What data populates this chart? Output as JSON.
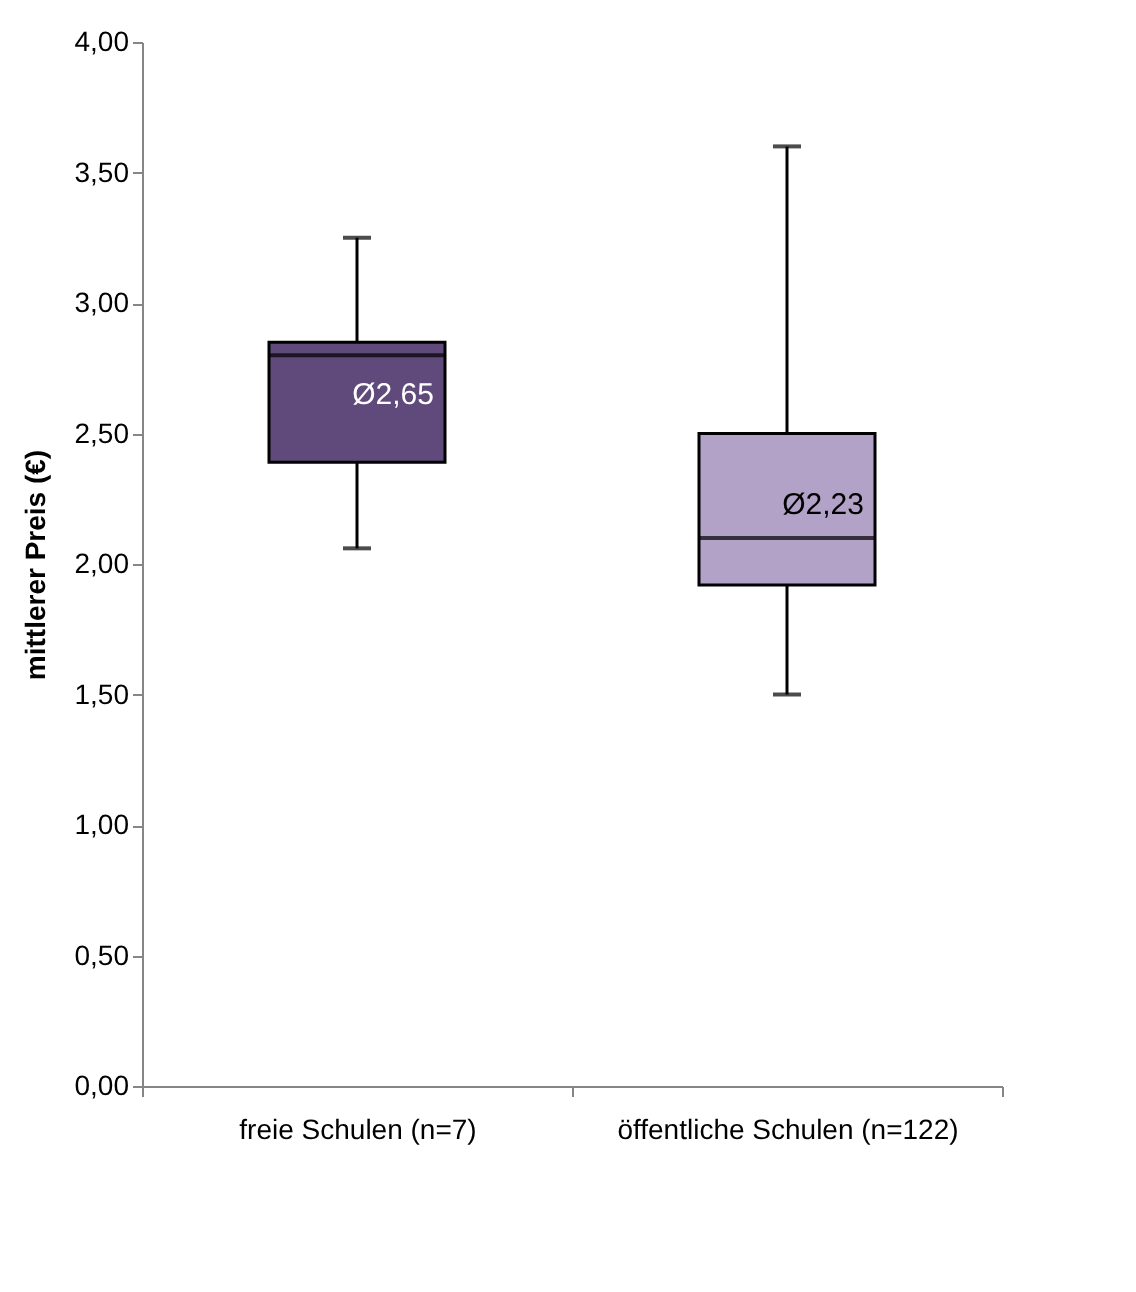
{
  "chart_data": {
    "type": "box",
    "ylabel": "mittlerer Preis (€)",
    "categories": [
      "freie Schulen (n=7)",
      "öffentliche Schulen (n=122)"
    ],
    "colors": [
      "#604a7b",
      "#b3a2c7"
    ],
    "boxes": [
      {
        "low": 2.06,
        "q1": 2.39,
        "median": 2.8,
        "q3": 2.85,
        "high": 3.25
      },
      {
        "low": 1.5,
        "q1": 1.92,
        "median": 2.1,
        "q3": 2.5,
        "high": 3.6
      }
    ],
    "annotations": [
      {
        "text": "Ø2,65",
        "x": "freie Schulen (n=7)",
        "y": 2.65
      },
      {
        "text": "Ø2,23",
        "x": "öffentliche Schulen (n=122)",
        "y": 2.23
      }
    ],
    "ylim": [
      0,
      4
    ],
    "yticks": [
      {
        "value": 0,
        "label": "0,00"
      },
      {
        "value": 0.5,
        "label": "0,50"
      },
      {
        "value": 1,
        "label": "1,00"
      },
      {
        "value": 1.5,
        "label": "1,50"
      },
      {
        "value": 2,
        "label": "2,00"
      },
      {
        "value": 2.5,
        "label": "2,50"
      },
      {
        "value": 3,
        "label": "3,00"
      },
      {
        "value": 3.5,
        "label": "3,50"
      },
      {
        "value": 4,
        "label": "4,00"
      }
    ],
    "grid": false
  }
}
